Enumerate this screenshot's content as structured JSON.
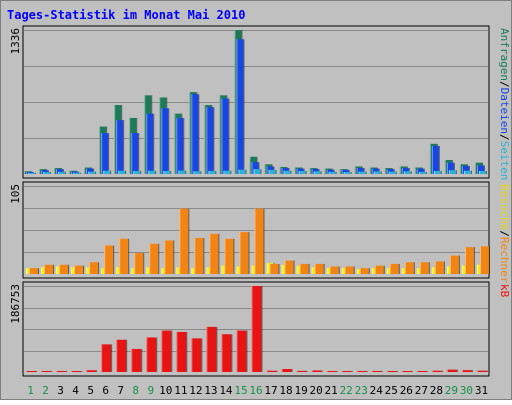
{
  "chart_data": {
    "type": "bar",
    "title": "Tages-Statistik im Monat Mai 2010",
    "categories": [
      "1",
      "2",
      "3",
      "4",
      "5",
      "6",
      "7",
      "8",
      "9",
      "10",
      "11",
      "12",
      "13",
      "14",
      "15",
      "16",
      "17",
      "18",
      "19",
      "20",
      "21",
      "22",
      "23",
      "24",
      "25",
      "26",
      "27",
      "28",
      "29",
      "30",
      "31"
    ],
    "weekend_days": [
      "1",
      "2",
      "8",
      "9",
      "15",
      "16",
      "22",
      "23",
      "29",
      "30"
    ],
    "panels": [
      {
        "id": "requests",
        "ymax_label": "1336",
        "ymax": 1336,
        "right_label_parts": [
          {
            "text": "Anfragen",
            "color": "#1a7b58"
          },
          {
            "text": "/",
            "color": "#000000"
          },
          {
            "text": "Dateien",
            "color": "#1646e6"
          },
          {
            "text": "/",
            "color": "#000000"
          },
          {
            "text": "Seiten",
            "color": "#2ab2d8"
          }
        ],
        "series": [
          {
            "name": "Anfragen",
            "color": "#1a7b58",
            "values": [
              25,
              45,
              55,
              30,
              60,
              440,
              640,
              520,
              730,
              710,
              560,
              760,
              640,
              730,
              1336,
              160,
              90,
              65,
              60,
              55,
              50,
              45,
              70,
              60,
              55,
              70,
              60,
              280,
              130,
              90,
              105
            ]
          },
          {
            "name": "Dateien",
            "color": "#1646e6",
            "values": [
              18,
              35,
              45,
              22,
              50,
              380,
              500,
              380,
              560,
              610,
              520,
              740,
              620,
              700,
              1250,
              110,
              70,
              55,
              50,
              45,
              40,
              38,
              55,
              50,
              45,
              55,
              50,
              260,
              105,
              75,
              80
            ]
          },
          {
            "name": "Seiten",
            "color": "#2ab2d8",
            "values": [
              10,
              18,
              20,
              12,
              22,
              30,
              30,
              28,
              30,
              28,
              32,
              25,
              28,
              30,
              40,
              45,
              38,
              30,
              28,
              25,
              20,
              18,
              22,
              24,
              22,
              25,
              20,
              28,
              35,
              30,
              28
            ]
          }
        ]
      },
      {
        "id": "visits",
        "ymax_label": "105",
        "ymax": 105,
        "right_label_parts": [
          {
            "text": "Besuche",
            "color": "#e8d214"
          },
          {
            "text": "/",
            "color": "#000000"
          },
          {
            "text": "Rechner",
            "color": "#f28414"
          }
        ],
        "series": [
          {
            "name": "Besuche",
            "color": "#f5f20f",
            "values": [
              7,
              8,
              9,
              8,
              8,
              7,
              8,
              7,
              8,
              7,
              8,
              7,
              8,
              10,
              9,
              10,
              13,
              11,
              10,
              8,
              7,
              7,
              6,
              7,
              7,
              7,
              7,
              8,
              9,
              10,
              11
            ]
          },
          {
            "name": "Rechner",
            "color": "#f28414",
            "values": [
              7,
              11,
              11,
              10,
              14,
              34,
              42,
              25,
              36,
              40,
              78,
              43,
              48,
              42,
              50,
              78,
              12,
              16,
              12,
              12,
              9,
              9,
              7,
              10,
              12,
              14,
              14,
              15,
              22,
              32,
              33
            ]
          }
        ]
      },
      {
        "id": "kb",
        "ymax_label": "186753",
        "ymax": 186753,
        "right_label_parts": [
          {
            "text": "kB",
            "color": "#e81414"
          }
        ],
        "series": [
          {
            "name": "kB",
            "color": "#e81414",
            "values": [
              900,
              900,
              900,
              900,
              3800,
              60000,
              70000,
              50000,
              75000,
              90000,
              87000,
              73000,
              98000,
              82000,
              90000,
              186753,
              2800,
              6500,
              2400,
              3400,
              1000,
              1200,
              1400,
              1100,
              1700,
              1400,
              1700,
              2800,
              5100,
              4000,
              2900
            ]
          }
        ]
      }
    ]
  }
}
